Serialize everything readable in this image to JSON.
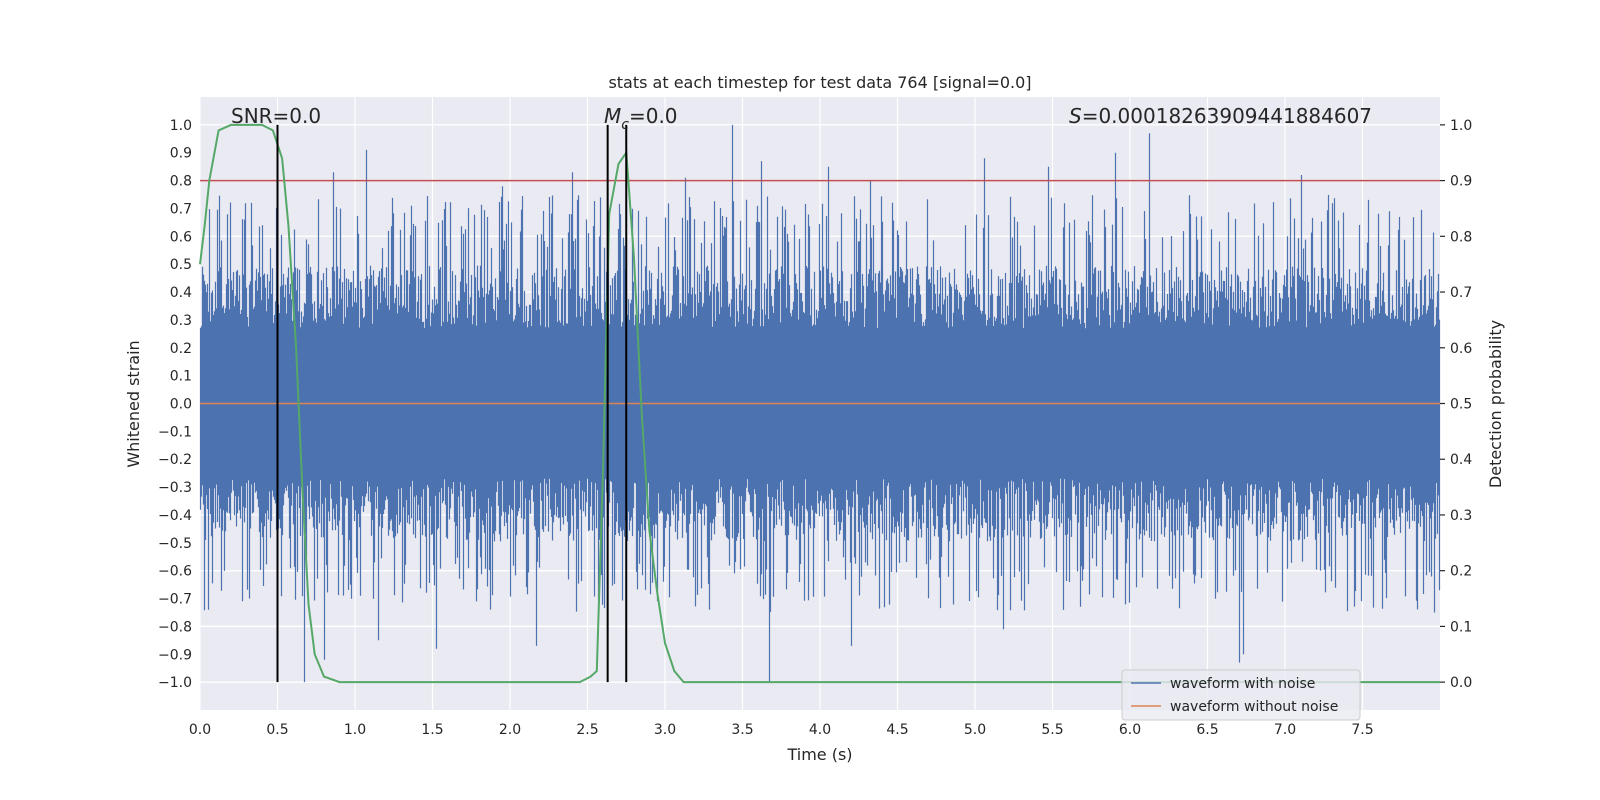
{
  "chart_data": {
    "type": "line",
    "title": "stats at each timestep for test data 764 [signal=0.0]",
    "xlabel": "Time (s)",
    "ylabel": "Whitened strain",
    "y2label": "Detection probability",
    "xlim": [
      0.0,
      8.0
    ],
    "ylim": [
      -1.1,
      1.1
    ],
    "y2lim": [
      -0.05,
      1.05
    ],
    "x_ticks": [
      "0.0",
      "0.5",
      "1.0",
      "1.5",
      "2.0",
      "2.5",
      "3.0",
      "3.5",
      "4.0",
      "4.5",
      "5.0",
      "5.5",
      "6.0",
      "6.5",
      "7.0",
      "7.5"
    ],
    "y_ticks": [
      "1.0",
      "0.9",
      "0.8",
      "0.7",
      "0.6",
      "0.5",
      "0.4",
      "0.3",
      "0.2",
      "0.1",
      "0.0",
      "−0.1",
      "−0.2",
      "−0.3",
      "−0.4",
      "−0.5",
      "−0.6",
      "−0.7",
      "−0.8",
      "−0.9",
      "−1.0"
    ],
    "y2_ticks": [
      "1.0",
      "0.9",
      "0.8",
      "0.7",
      "0.6",
      "0.5",
      "0.4",
      "0.3",
      "0.2",
      "0.1",
      "0.0"
    ],
    "annotations": {
      "snr": "SNR=0.0",
      "mc_symbol": "M",
      "mc_sub": "c",
      "mc_value": "=0.0",
      "s_symbol": "S",
      "s_value": "=0.00018263909441884607"
    },
    "threshold": {
      "y2": 0.9,
      "color": "#c44e52"
    },
    "vertical_markers": [
      0.5,
      2.63,
      2.75
    ],
    "noise_series": {
      "name": "waveform with noise",
      "color": "#4c72b0",
      "envelope_typical": 0.45,
      "peaks": [
        {
          "x": 0.33,
          "y": 0.72
        },
        {
          "x": 0.86,
          "y": 0.83
        },
        {
          "x": 1.07,
          "y": 0.91
        },
        {
          "x": 1.95,
          "y": 0.78
        },
        {
          "x": 2.4,
          "y": 0.83
        },
        {
          "x": 3.13,
          "y": 0.81
        },
        {
          "x": 3.43,
          "y": 1.0
        },
        {
          "x": 3.62,
          "y": 0.87
        },
        {
          "x": 4.05,
          "y": 0.85
        },
        {
          "x": 4.32,
          "y": 0.8
        },
        {
          "x": 5.06,
          "y": 0.88
        },
        {
          "x": 5.47,
          "y": 0.85
        },
        {
          "x": 5.9,
          "y": 0.9
        },
        {
          "x": 6.12,
          "y": 0.97
        },
        {
          "x": 7.1,
          "y": 0.82
        },
        {
          "x": 0.05,
          "y": -0.74
        },
        {
          "x": 0.67,
          "y": -1.0
        },
        {
          "x": 0.8,
          "y": -0.92
        },
        {
          "x": 1.15,
          "y": -0.85
        },
        {
          "x": 1.52,
          "y": -0.88
        },
        {
          "x": 2.17,
          "y": -0.87
        },
        {
          "x": 3.67,
          "y": -1.0
        },
        {
          "x": 4.2,
          "y": -0.87
        },
        {
          "x": 5.18,
          "y": -0.81
        },
        {
          "x": 6.7,
          "y": -0.93
        },
        {
          "x": 6.73,
          "y": -0.9
        }
      ]
    },
    "clean_series": {
      "name": "waveform without noise",
      "color": "#dd8452",
      "value": 0.0
    },
    "probability_series": {
      "name": "detection probability",
      "color": "#55a868",
      "x": [
        0.0,
        0.03,
        0.06,
        0.12,
        0.2,
        0.3,
        0.4,
        0.47,
        0.53,
        0.57,
        0.62,
        0.66,
        0.7,
        0.74,
        0.8,
        0.9,
        1.2,
        2.0,
        2.45,
        2.52,
        2.56,
        2.6,
        2.64,
        2.7,
        2.75,
        2.8,
        2.85,
        2.9,
        2.95,
        3.0,
        3.06,
        3.12,
        3.5,
        5.0,
        7.0,
        8.0
      ],
      "y": [
        0.75,
        0.82,
        0.9,
        0.99,
        1.0,
        1.0,
        1.0,
        0.99,
        0.94,
        0.82,
        0.6,
        0.35,
        0.14,
        0.05,
        0.01,
        0.0,
        0.0,
        0.0,
        0.0,
        0.01,
        0.02,
        0.38,
        0.84,
        0.93,
        0.95,
        0.76,
        0.48,
        0.27,
        0.16,
        0.07,
        0.02,
        0.0,
        0.0,
        0.0,
        0.0,
        0.0
      ]
    },
    "legend": {
      "placement": "lower-right",
      "entries": [
        {
          "label": "waveform with noise",
          "color": "#4c72b0"
        },
        {
          "label": "waveform without noise",
          "color": "#dd8452"
        }
      ]
    }
  }
}
